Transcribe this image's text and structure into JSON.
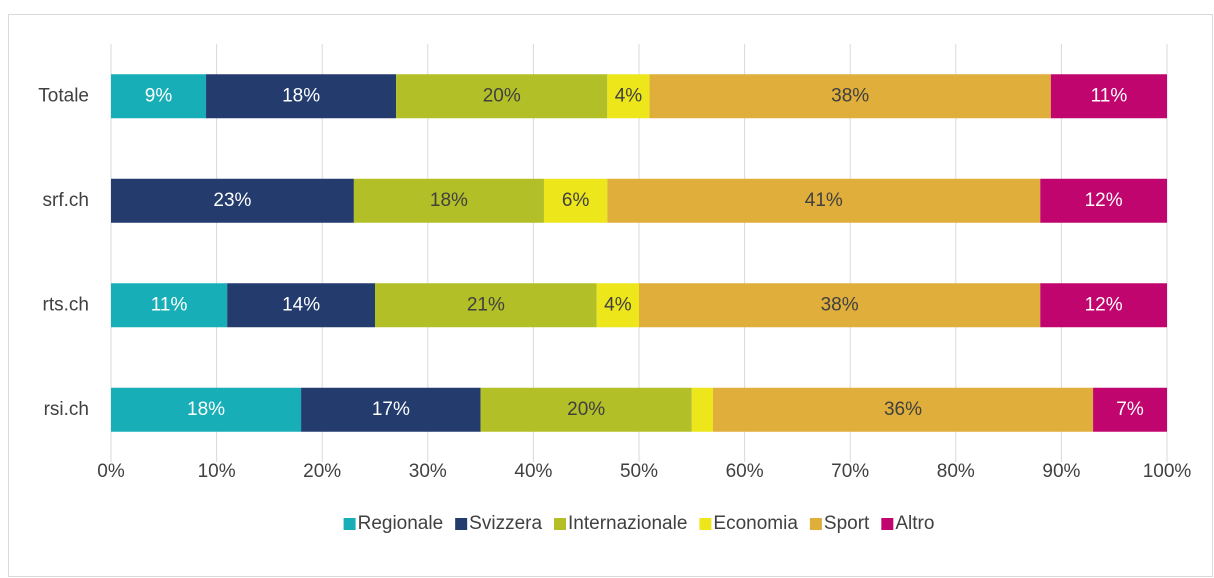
{
  "chart_data": {
    "type": "stacked-barh",
    "categories": [
      "Totale",
      "srf.ch",
      "rts.ch",
      "rsi.ch"
    ],
    "series": [
      {
        "name": "Regionale",
        "color": "#17aeb7",
        "values": [
          9,
          0,
          11,
          18
        ],
        "value_labels": [
          "9%",
          null,
          "11%",
          "18%"
        ]
      },
      {
        "name": "Svizzera",
        "color": "#243b6e",
        "values": [
          18,
          23,
          14,
          17
        ],
        "value_labels": [
          "18%",
          "23%",
          "14%",
          "17%"
        ]
      },
      {
        "name": "Internazionale",
        "color": "#b2bf27",
        "values": [
          20,
          18,
          21,
          20
        ],
        "value_labels": [
          "20%",
          "18%",
          "21%",
          "20%"
        ]
      },
      {
        "name": "Economia",
        "color": "#ece61b",
        "values": [
          4,
          6,
          4,
          2
        ],
        "value_labels": [
          "4%",
          "6%",
          "4%",
          null
        ]
      },
      {
        "name": "Sport",
        "color": "#e0ae3a",
        "values": [
          38,
          41,
          38,
          36
        ],
        "value_labels": [
          "38%",
          "41%",
          "38%",
          "36%"
        ]
      },
      {
        "name": "Altro",
        "color": "#c0066e",
        "values": [
          11,
          12,
          12,
          7
        ],
        "value_labels": [
          "11%",
          "12%",
          "12%",
          "7%"
        ]
      }
    ],
    "xlim": [
      0,
      100
    ],
    "xticks": [
      {
        "value": 0,
        "label": "0%"
      },
      {
        "value": 10,
        "label": "10%"
      },
      {
        "value": 20,
        "label": "20%"
      },
      {
        "value": 30,
        "label": "30%"
      },
      {
        "value": 40,
        "label": "40%"
      },
      {
        "value": 50,
        "label": "50%"
      },
      {
        "value": 60,
        "label": "60%"
      },
      {
        "value": 70,
        "label": "70%"
      },
      {
        "value": 80,
        "label": "80%"
      },
      {
        "value": 90,
        "label": "90%"
      },
      {
        "value": 100,
        "label": "100%"
      }
    ],
    "grid": true,
    "legend": "bottom"
  }
}
